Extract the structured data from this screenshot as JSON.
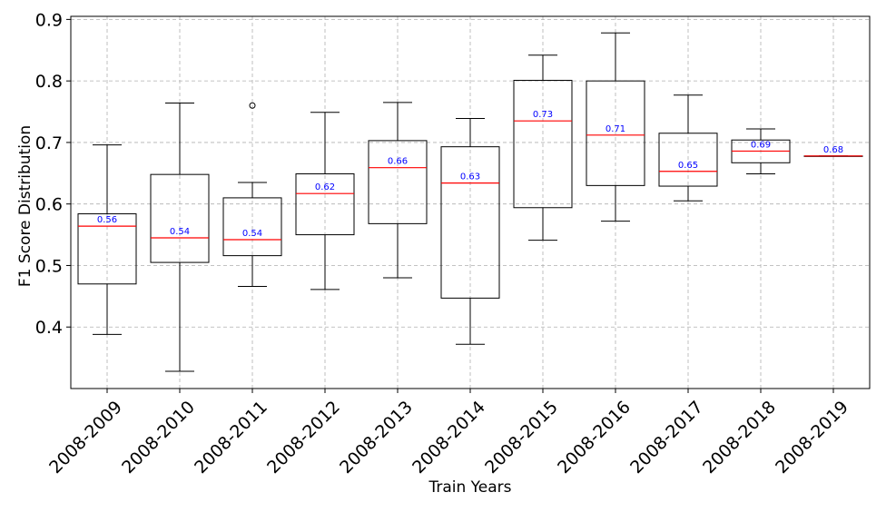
{
  "chart_data": {
    "type": "box",
    "xlabel": "Train Years",
    "ylabel": "F1 Score Distribution",
    "ylim": [
      0.3,
      0.905
    ],
    "yticks": [
      0.4,
      0.5,
      0.6,
      0.7,
      0.8,
      0.9
    ],
    "ytick_labels": [
      "0.4",
      "0.5",
      "0.6",
      "0.7",
      "0.8",
      "0.9"
    ],
    "grid": true,
    "colors": {
      "box": "#000000",
      "median": "#ff0000",
      "median_label": "#0000ff",
      "grid": "#b0b0b0"
    },
    "categories": [
      "2008-2009",
      "2008-2010",
      "2008-2011",
      "2008-2012",
      "2008-2013",
      "2008-2014",
      "2008-2015",
      "2008-2016",
      "2008-2017",
      "2008-2018",
      "2008-2019"
    ],
    "boxes": [
      {
        "whislo": 0.388,
        "q1": 0.47,
        "med": 0.564,
        "q3": 0.584,
        "whishi": 0.696,
        "fliers": [],
        "label": "0.56"
      },
      {
        "whislo": 0.328,
        "q1": 0.505,
        "med": 0.545,
        "q3": 0.648,
        "whishi": 0.764,
        "fliers": [],
        "label": "0.54"
      },
      {
        "whislo": 0.466,
        "q1": 0.516,
        "med": 0.542,
        "q3": 0.61,
        "whishi": 0.635,
        "fliers": [
          0.76
        ],
        "label": "0.54"
      },
      {
        "whislo": 0.461,
        "q1": 0.55,
        "med": 0.617,
        "q3": 0.649,
        "whishi": 0.749,
        "fliers": [],
        "label": "0.62"
      },
      {
        "whislo": 0.48,
        "q1": 0.568,
        "med": 0.659,
        "q3": 0.703,
        "whishi": 0.765,
        "fliers": [],
        "label": "0.66"
      },
      {
        "whislo": 0.372,
        "q1": 0.447,
        "med": 0.634,
        "q3": 0.693,
        "whishi": 0.739,
        "fliers": [],
        "label": "0.63"
      },
      {
        "whislo": 0.541,
        "q1": 0.594,
        "med": 0.735,
        "q3": 0.801,
        "whishi": 0.842,
        "fliers": [],
        "label": "0.73"
      },
      {
        "whislo": 0.572,
        "q1": 0.63,
        "med": 0.712,
        "q3": 0.8,
        "whishi": 0.878,
        "fliers": [],
        "label": "0.71"
      },
      {
        "whislo": 0.605,
        "q1": 0.629,
        "med": 0.653,
        "q3": 0.715,
        "whishi": 0.777,
        "fliers": [],
        "label": "0.65"
      },
      {
        "whislo": 0.649,
        "q1": 0.667,
        "med": 0.686,
        "q3": 0.704,
        "whishi": 0.722,
        "fliers": [],
        "label": "0.69"
      },
      {
        "whislo": 0.678,
        "q1": 0.678,
        "med": 0.678,
        "q3": 0.678,
        "whishi": 0.678,
        "fliers": [],
        "label": "0.68"
      }
    ]
  }
}
